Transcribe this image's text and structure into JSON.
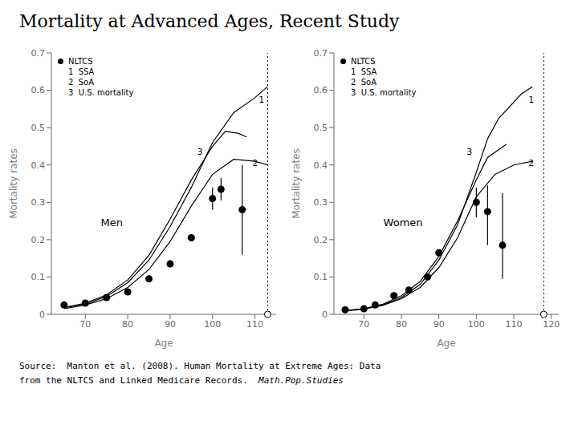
{
  "title": "Mortality at Advanced Ages, Recent Study",
  "annotations": [
    "Source:  Manton et al. (2008). Human Mortality at Extreme Ages: Data",
    "from the NLTCS and Linked Medicare Records.  ",
    "Math.Pop.Studies"
  ],
  "chart_data": [
    {
      "type": "line",
      "xlabel": "Age",
      "ylabel": "Mortality rates",
      "xlim": [
        62,
        115
      ],
      "ylim": [
        0,
        0.7
      ],
      "xticks": [
        70,
        80,
        90,
        100,
        110
      ],
      "yticks": [
        0,
        0.1,
        0.2,
        0.3,
        0.4,
        0.5,
        0.6,
        0.7
      ],
      "legend": "upper left",
      "vline": 113,
      "open_circle": {
        "x": 113,
        "y": 0
      },
      "annotations": [
        {
          "text": "Men"
        },
        {
          "text": "1",
          "x": 110.5,
          "y": 0.575
        },
        {
          "text": "2",
          "x": 109,
          "y": 0.405
        },
        {
          "text": "3",
          "x": 96,
          "y": 0.435
        }
      ],
      "series": [
        {
          "name": "NLTCS",
          "type": "scatter",
          "marker": "circle",
          "color": "#000000",
          "x": [
            65,
            70,
            75,
            80,
            85,
            90,
            95,
            100,
            102,
            107
          ],
          "values": [
            0.025,
            0.03,
            0.045,
            0.06,
            0.095,
            0.135,
            0.205,
            0.31,
            0.335,
            0.28
          ],
          "error_low": [
            0.0,
            0.0,
            0.0,
            0.0,
            0.0,
            0.0,
            0.0,
            0.03,
            0.03,
            0.12
          ],
          "error_high": [
            0.0,
            0.0,
            0.0,
            0.0,
            0.0,
            0.0,
            0.0,
            0.03,
            0.03,
            0.12
          ]
        },
        {
          "name": "1  SSA",
          "type": "line",
          "color": "#000000",
          "x": [
            65,
            70,
            75,
            80,
            85,
            90,
            95,
            100,
            105,
            110,
            113
          ],
          "values": [
            0.018,
            0.028,
            0.048,
            0.085,
            0.145,
            0.235,
            0.34,
            0.46,
            0.54,
            0.58,
            0.61
          ]
        },
        {
          "name": "2  SoA",
          "type": "line",
          "color": "#000000",
          "x": [
            65,
            70,
            75,
            80,
            85,
            90,
            95,
            100,
            105,
            110,
            113
          ],
          "values": [
            0.015,
            0.025,
            0.042,
            0.072,
            0.12,
            0.195,
            0.29,
            0.375,
            0.415,
            0.41,
            0.4
          ]
        },
        {
          "name": "3  U.S. mortality",
          "type": "line",
          "color": "#000000",
          "x": [
            65,
            70,
            75,
            80,
            85,
            90,
            95,
            100,
            103,
            106,
            108
          ],
          "values": [
            0.018,
            0.03,
            0.052,
            0.092,
            0.158,
            0.255,
            0.36,
            0.45,
            0.49,
            0.485,
            0.475
          ]
        }
      ]
    },
    {
      "type": "line",
      "xlabel": "Age",
      "ylabel": "Mortality rates",
      "xlim": [
        62,
        122
      ],
      "ylim": [
        0,
        0.7
      ],
      "xticks": [
        70,
        80,
        90,
        100,
        110,
        120
      ],
      "yticks": [
        0,
        0.1,
        0.2,
        0.3,
        0.4,
        0.5,
        0.6,
        0.7
      ],
      "legend": "upper left",
      "vline": 118,
      "open_circle": {
        "x": 118,
        "y": 0
      },
      "annotations": [
        {
          "text": "Women"
        },
        {
          "text": "1",
          "x": 113.5,
          "y": 0.575
        },
        {
          "text": "2",
          "x": 113.5,
          "y": 0.405
        },
        {
          "text": "3",
          "x": 97,
          "y": 0.435
        }
      ],
      "series": [
        {
          "name": "NLTCS",
          "type": "scatter",
          "marker": "circle",
          "color": "#000000",
          "x": [
            65,
            70,
            73,
            78,
            82,
            87,
            90,
            100,
            103,
            107
          ],
          "values": [
            0.012,
            0.015,
            0.025,
            0.05,
            0.065,
            0.1,
            0.165,
            0.3,
            0.275,
            0.185
          ],
          "error_low": [
            0.0,
            0.0,
            0.0,
            0.0,
            0.0,
            0.0,
            0.0,
            0.04,
            0.09,
            0.09
          ],
          "error_high": [
            0.0,
            0.0,
            0.0,
            0.0,
            0.0,
            0.0,
            0.0,
            0.04,
            0.07,
            0.14
          ]
        },
        {
          "name": "1  SSA",
          "type": "line",
          "color": "#000000",
          "x": [
            65,
            70,
            75,
            80,
            85,
            90,
            95,
            100,
            103,
            106,
            112,
            115
          ],
          "values": [
            0.01,
            0.015,
            0.025,
            0.045,
            0.08,
            0.145,
            0.24,
            0.38,
            0.47,
            0.525,
            0.59,
            0.61
          ]
        },
        {
          "name": "2  SoA",
          "type": "line",
          "color": "#000000",
          "x": [
            65,
            70,
            75,
            80,
            85,
            90,
            95,
            100,
            105,
            110,
            115
          ],
          "values": [
            0.009,
            0.014,
            0.024,
            0.042,
            0.072,
            0.125,
            0.205,
            0.315,
            0.375,
            0.4,
            0.41
          ]
        },
        {
          "name": "3  U.S. mortality",
          "type": "line",
          "color": "#000000",
          "x": [
            65,
            70,
            75,
            80,
            85,
            90,
            95,
            100,
            103,
            108
          ],
          "values": [
            0.01,
            0.015,
            0.027,
            0.05,
            0.088,
            0.155,
            0.25,
            0.36,
            0.42,
            0.455
          ]
        }
      ]
    }
  ]
}
